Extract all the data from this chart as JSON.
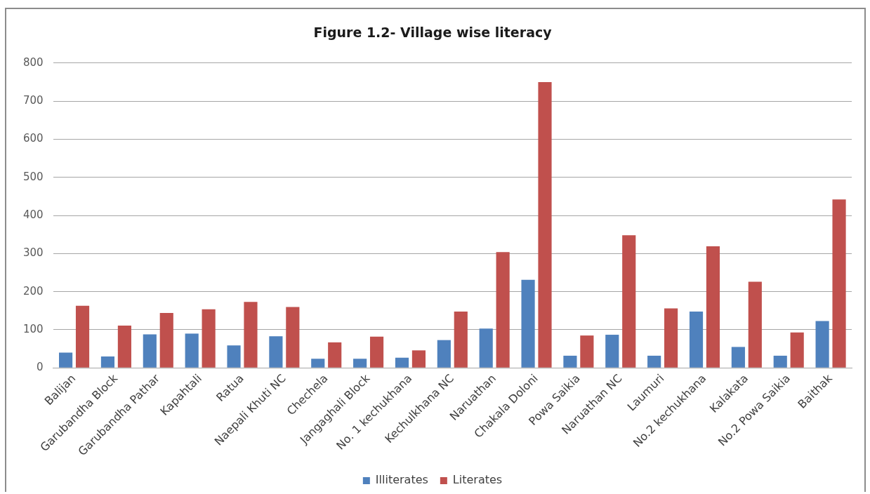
{
  "chart_data": {
    "type": "bar",
    "title": "Figure 1.2- Village wise literacy",
    "categories": [
      "Balijan",
      "Garubandha Block",
      "Garubandha Pathar",
      "Kapahtali",
      "Ratua",
      "Naepali Khuti NC",
      "Chechela",
      "Jangaghali Block",
      "No. 1 kechukhana",
      "Kechulkhana NC",
      "Naruathan",
      "Chakala Doloni",
      "Powa Saikia",
      "Naruathan NC",
      "Laumuri",
      "No.2 kechukhana",
      "Kalakata",
      "No.2 Powa Saikia",
      "Baithak"
    ],
    "series": [
      {
        "name": "Illiterates",
        "color": "#4f81bd",
        "values": [
          40,
          30,
          88,
          90,
          59,
          83,
          24,
          24,
          27,
          73,
          103,
          231,
          32,
          87,
          32,
          148,
          55,
          32,
          123
        ]
      },
      {
        "name": "Literates",
        "color": "#c0504d",
        "values": [
          163,
          111,
          144,
          154,
          173,
          160,
          67,
          82,
          46,
          148,
          304,
          750,
          85,
          348,
          156,
          319,
          226,
          93,
          442
        ]
      }
    ],
    "ylim": [
      0,
      800
    ],
    "yticks": [
      0,
      100,
      200,
      300,
      400,
      500,
      600,
      700,
      800
    ],
    "grid": "y",
    "legend": "bottom"
  }
}
